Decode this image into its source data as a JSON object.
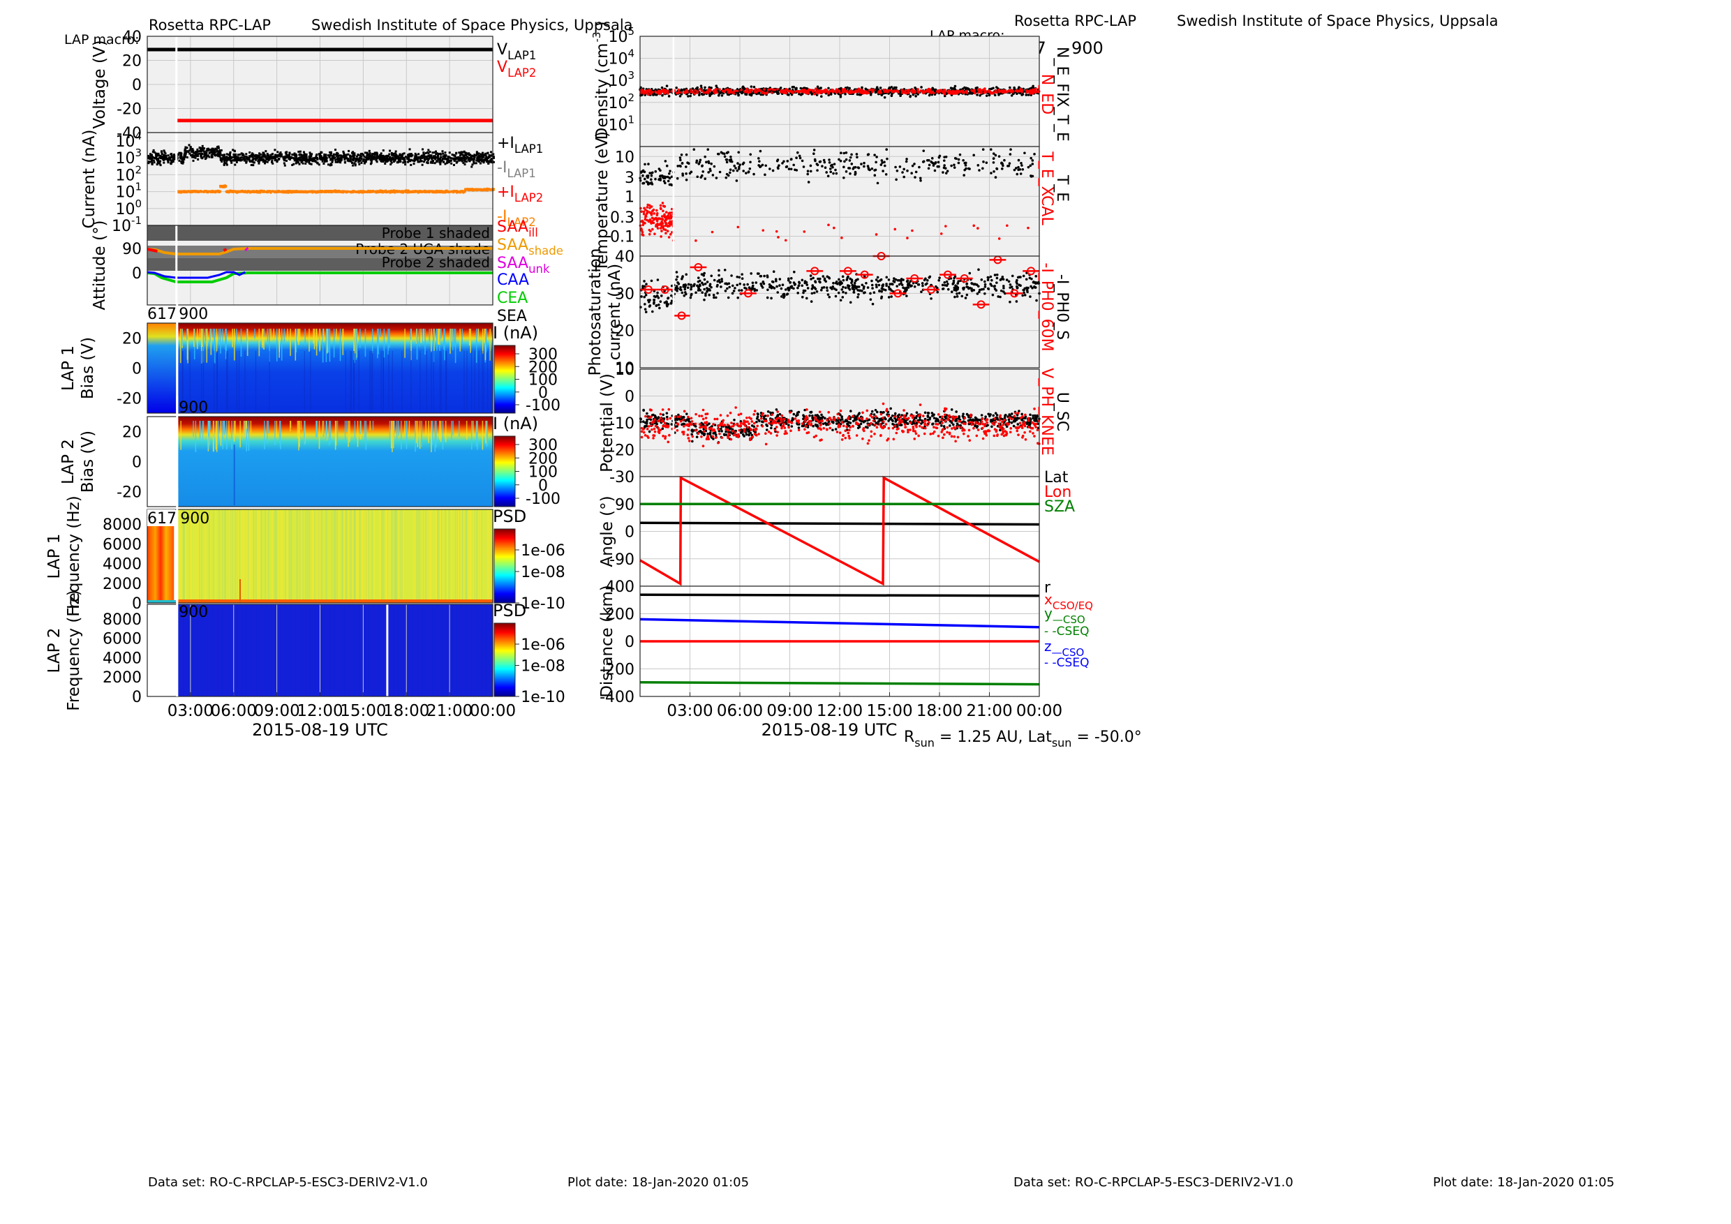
{
  "left": {
    "header": {
      "instrument": "Rosetta RPC-LAP",
      "institute": "Swedish Institute of Space Physics, Uppsala",
      "macro_label": "LAP macro:",
      "macros": [
        "617",
        "900"
      ]
    },
    "footer": {
      "dataset": "Data set: RO-C-RPCLAP-5-ESC3-DERIV2-V1.0",
      "plot_date": "Plot date: 18-Jan-2020 01:05"
    },
    "xaxis": {
      "label": "2015-08-19 UTC",
      "ticks": [
        "03:00",
        "06:00",
        "09:00",
        "12:00",
        "15:00",
        "18:00",
        "21:00",
        "00:00"
      ],
      "range_hours": [
        0,
        24
      ]
    }
  },
  "right": {
    "header": {
      "instrument": "Rosetta RPC-LAP",
      "institute": "Swedish Institute of Space Physics, Uppsala",
      "macro_label": "LAP macro:",
      "macros": [
        "617",
        "900"
      ]
    },
    "footer": {
      "dataset": "Data set: RO-C-RPCLAP-5-ESC3-DERIV2-V1.0",
      "plot_date": "Plot date: 18-Jan-2020 01:05"
    },
    "xaxis": {
      "label": "2015-08-19 UTC",
      "ticks": [
        "03:00",
        "06:00",
        "09:00",
        "12:00",
        "15:00",
        "18:00",
        "21:00",
        "00:00"
      ],
      "range_hours": [
        0,
        24
      ]
    },
    "rsun_text": "R",
    "rsun_sub": "sun",
    "rsun_value": " = 1.25 AU, Lat",
    "lat_sub": "sun",
    "lat_value": " = -50.0°"
  },
  "colors": {
    "black": "#000000",
    "red": "#ff0000",
    "orange": "#ff8000",
    "gray": "#808080",
    "green": "#00cc00",
    "darkgreen": "#007700",
    "blue": "#0000ff",
    "magenta": "#e000e0",
    "saa_shade": "#ee9a00"
  },
  "chart_data": [
    {
      "id": "voltage",
      "type": "line",
      "ylabel": "Voltage (V)",
      "ylim": [
        -40,
        40
      ],
      "yticks": [
        "40",
        "20",
        "0",
        "-20",
        "-40"
      ],
      "series": [
        {
          "name": "V_LAP1",
          "color": "#000000",
          "x": [
            0,
            24
          ],
          "y": [
            29,
            29
          ]
        },
        {
          "name": "V_LAP2",
          "color": "#ff0000",
          "x": [
            2,
            24
          ],
          "y": [
            -30,
            -30
          ]
        }
      ],
      "legend": [
        {
          "base": "V",
          "sub": "LAP1",
          "color": "#000000"
        },
        {
          "base": "V",
          "sub": "LAP2",
          "color": "#ff0000"
        }
      ]
    },
    {
      "id": "current",
      "type": "scatter",
      "ylabel": "Current (nA)",
      "yscale": "log",
      "ylim": [
        0.1,
        10000
      ],
      "yticks": [
        "10^4",
        "10^3",
        "10^2",
        "10^1",
        "10^0",
        "10^-1"
      ],
      "series": [
        {
          "name": "+I_LAP1",
          "color": "#000000",
          "typical": 1000
        },
        {
          "name": "-I_LAP2",
          "color": "#ff8000",
          "typical": 10
        }
      ],
      "legend": [
        {
          "base": "+I",
          "sub": "LAP1",
          "color": "#000000"
        },
        {
          "base": "-I",
          "sub": "LAP1",
          "color": "#808080"
        },
        {
          "base": "+I",
          "sub": "LAP2",
          "color": "#ff0000"
        },
        {
          "base": "-I",
          "sub": "LAP2",
          "color": "#ff8000"
        }
      ]
    },
    {
      "id": "attitude",
      "type": "line",
      "ylabel": "Attitude (°)",
      "yticks": [
        "90",
        "0"
      ],
      "shaded": [
        "Probe 1 shaded",
        "Probe 2 UGA shade",
        "Probe 2 shaded"
      ],
      "legend": [
        {
          "base": "SAA",
          "sub": "ill",
          "color": "#ff0000"
        },
        {
          "base": "SAA",
          "sub": "shade",
          "color": "#ee9a00"
        },
        {
          "base": "SAA",
          "sub": "unk",
          "color": "#e000e0"
        },
        {
          "base": "CAA",
          "sub": "",
          "color": "#0000ff"
        },
        {
          "base": "CEA",
          "sub": "",
          "color": "#00cc00"
        },
        {
          "base": "SEA",
          "sub": "",
          "color": "#000000"
        }
      ]
    },
    {
      "id": "lap1_bias",
      "type": "heatmap",
      "ylabel": "Bias (V)",
      "probe": "LAP 1",
      "yticks": [
        "20",
        "0",
        "-20"
      ],
      "colorbar_title": "I (nA)",
      "colorbar_ticks": [
        "300",
        "200",
        "100",
        "0",
        "-100"
      ],
      "macros": [
        "617",
        "900"
      ]
    },
    {
      "id": "lap2_bias",
      "type": "heatmap",
      "ylabel": "Bias (V)",
      "probe": "LAP 2",
      "yticks": [
        "20",
        "0",
        "-20"
      ],
      "colorbar_title": "I (nA)",
      "colorbar_ticks": [
        "300",
        "200",
        "100",
        "0",
        "-100"
      ],
      "macros": [
        "900"
      ]
    },
    {
      "id": "lap1_psd",
      "type": "heatmap",
      "ylabel": "Frequency (Hz)",
      "probe": "LAP 1",
      "yticks": [
        "8000",
        "6000",
        "4000",
        "2000",
        "0"
      ],
      "colorbar_title": "PSD",
      "colorbar_ticks": [
        "1e-06",
        "1e-08",
        "1e-10"
      ],
      "macros": [
        "617",
        "900"
      ]
    },
    {
      "id": "lap2_psd",
      "type": "heatmap",
      "ylabel": "Frequency (Hz)",
      "probe": "LAP 2",
      "yticks": [
        "8000",
        "6000",
        "4000",
        "2000",
        "0"
      ],
      "colorbar_title": "PSD",
      "colorbar_ticks": [
        "1e-06",
        "1e-08",
        "1e-10"
      ],
      "macros": [
        "900"
      ]
    },
    {
      "id": "density",
      "type": "scatter",
      "ylabel": "Density (cm^-3)",
      "yscale": "log",
      "ylim": [
        1,
        100000
      ],
      "yticks": [
        "10^5",
        "10^4",
        "10^3",
        "10^2",
        "10^1"
      ],
      "series": [
        {
          "name": "N_E_FIX_T_E",
          "color": "#000000",
          "typical": 300
        },
        {
          "name": "N_ED",
          "color": "#ff0000",
          "typical": 300
        }
      ],
      "legend": [
        "N_ED",
        "N_E_FIX_T_E"
      ]
    },
    {
      "id": "temperature",
      "type": "scatter",
      "ylabel": "Temperature (eV)",
      "yscale": "log",
      "yticks": [
        "10",
        "3",
        "1",
        "0.3",
        "0.1"
      ],
      "series": [
        {
          "name": "T_E",
          "color": "#000000"
        },
        {
          "name": "T_E_XCAL",
          "color": "#ff0000"
        }
      ],
      "legend": [
        "T_E_XCAL",
        "T_E"
      ]
    },
    {
      "id": "photosat",
      "type": "scatter",
      "ylabel": "Photosaturation current (nA)",
      "ylim": [
        10,
        40
      ],
      "yticks": [
        "40",
        "30",
        "20",
        "10"
      ],
      "series": [
        {
          "name": "-I_PH0_S",
          "color": "#000000"
        },
        {
          "name": "-I_PH0_60M",
          "color": "#ff0000",
          "x": [
            0.5,
            1.5,
            2.5,
            3.5,
            6.5,
            10.5,
            12.5,
            13.5,
            14.5,
            15.5,
            16.5,
            17.5,
            18.5,
            19.5,
            20.5,
            21.5,
            22.5,
            23.5
          ],
          "y": [
            31,
            31,
            24,
            37,
            30,
            36,
            36,
            35,
            40,
            30,
            34,
            31,
            35,
            34,
            27,
            39,
            30,
            36
          ]
        }
      ],
      "legend": [
        "-I_PH0_60M",
        "-I_PH0_S"
      ]
    },
    {
      "id": "potential",
      "type": "scatter",
      "ylabel": "Potential (V)",
      "ylim": [
        -30,
        10
      ],
      "yticks": [
        "10",
        "0",
        "-10",
        "-20",
        "-30"
      ],
      "series": [
        {
          "name": "U_SC",
          "color": "#000000",
          "typical": -9
        },
        {
          "name": "V_PH_KNEE",
          "color": "#ff0000",
          "typical": -10
        }
      ],
      "legend": [
        "V_PH_KNEE",
        "U_SC"
      ]
    },
    {
      "id": "angle",
      "type": "line",
      "ylabel": "Angle (°)",
      "ylim": [
        -180,
        180
      ],
      "yticks": [
        "90",
        "0",
        "-90"
      ],
      "series": [
        {
          "name": "Lat",
          "color": "#000000",
          "x": [
            0,
            24
          ],
          "y": [
            28,
            23
          ]
        },
        {
          "name": "Lon",
          "color": "#ff0000",
          "x": [
            0,
            2.42,
            2.45,
            14.6,
            14.65,
            24
          ],
          "y": [
            -95,
            -172,
            176,
            -172,
            176,
            -100
          ]
        },
        {
          "name": "SZA",
          "color": "#008000",
          "x": [
            0,
            24
          ],
          "y": [
            90,
            90
          ]
        }
      ],
      "legend": [
        {
          "text": "Lat",
          "color": "#000000"
        },
        {
          "text": "Lon",
          "color": "#ff0000"
        },
        {
          "text": "SZA",
          "color": "#008000"
        }
      ]
    },
    {
      "id": "distance",
      "type": "line",
      "ylabel": "Distance (km)",
      "ylim": [
        -400,
        400
      ],
      "yticks": [
        "400",
        "200",
        "0",
        "-200",
        "-400"
      ],
      "series": [
        {
          "name": "r",
          "color": "#000000",
          "x": [
            0,
            24
          ],
          "y": [
            338,
            330
          ]
        },
        {
          "name": "x",
          "color": "#ff0000",
          "x": [
            0,
            24
          ],
          "y": [
            0,
            0
          ]
        },
        {
          "name": "y",
          "color": "#008000",
          "x": [
            0,
            24
          ],
          "y": [
            -297,
            -312
          ]
        },
        {
          "name": "z",
          "color": "#0000ff",
          "x": [
            0,
            24
          ],
          "y": [
            160,
            103
          ]
        }
      ],
      "legend": [
        {
          "text": "r",
          "color": "#000000"
        },
        {
          "text": "x",
          "sub": "CSO/EQ",
          "color": "#ff0000"
        },
        {
          "text": "y",
          "sub": "—CSO",
          "color": "#008000"
        },
        {
          "text": " - -CSEQ",
          "color": "#008000"
        },
        {
          "text": "z",
          "sub": "—CSO",
          "color": "#0000ff"
        },
        {
          "text": " - -CSEQ",
          "color": "#0000ff"
        }
      ]
    }
  ]
}
